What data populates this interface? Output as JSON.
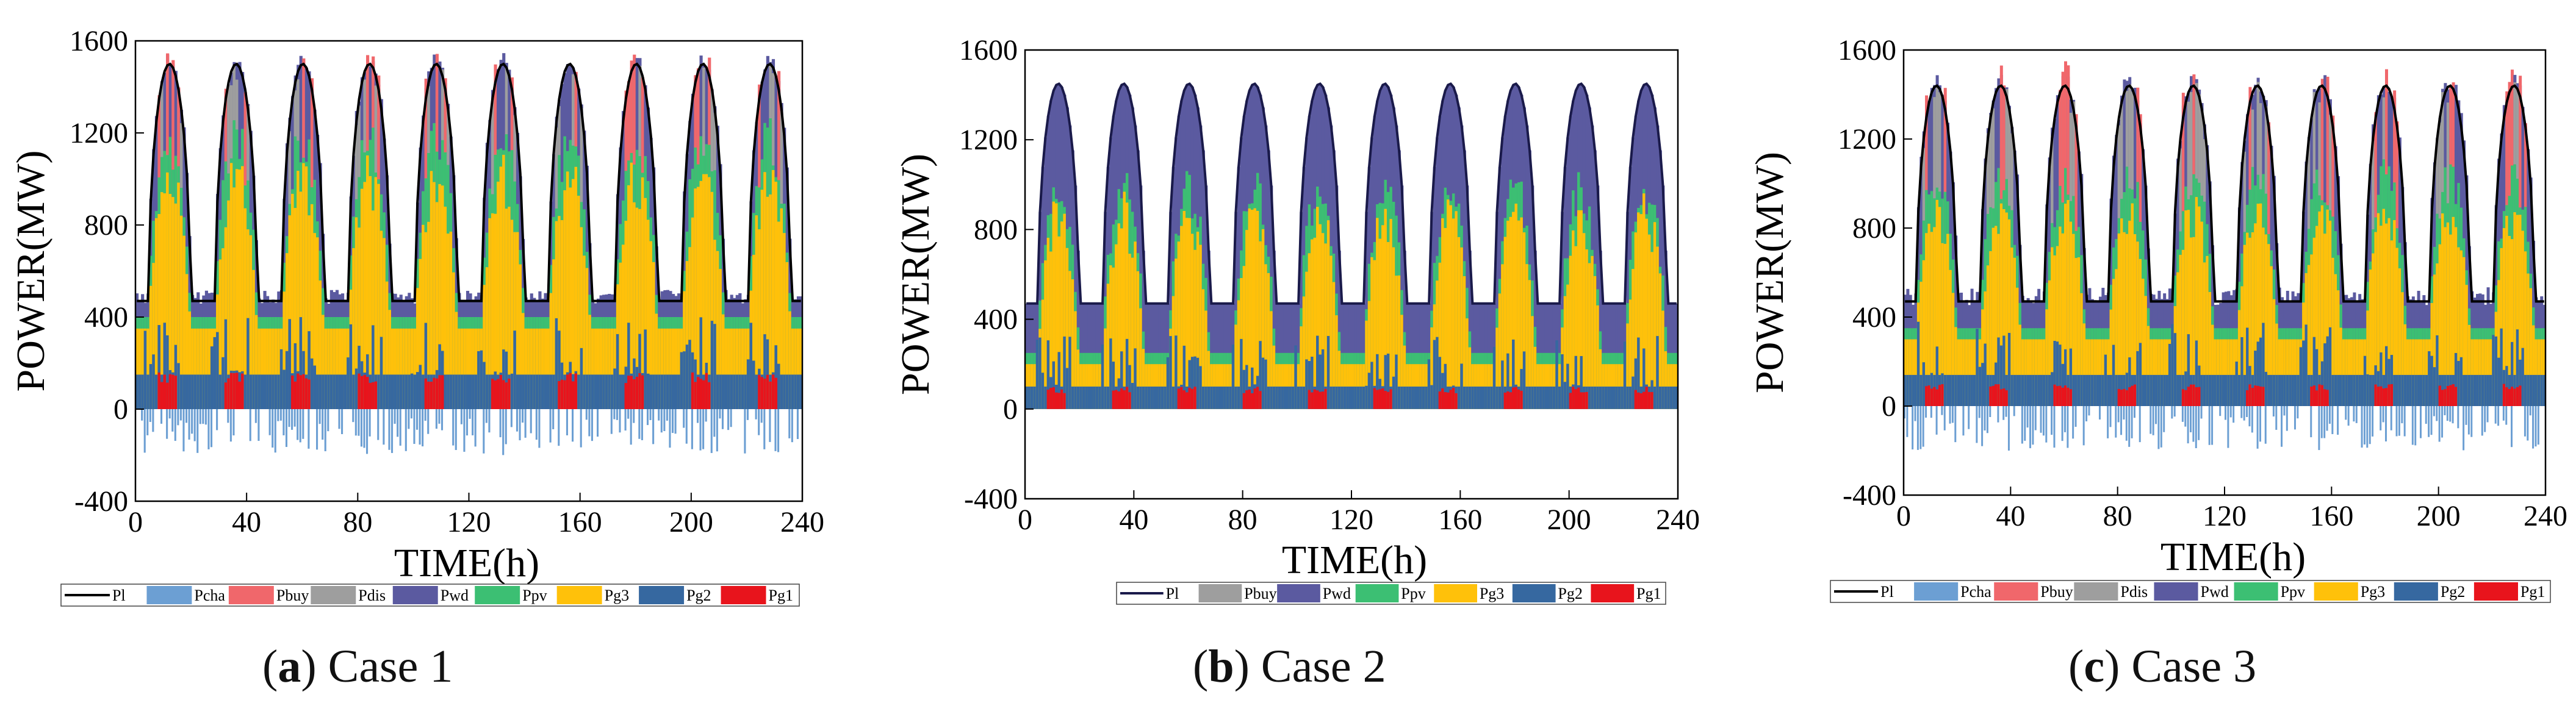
{
  "chart_data": [
    {
      "type": "area",
      "panel_id": "a",
      "caption_letter": "(a)",
      "caption_text": " Case 1",
      "title": "",
      "xlabel": "TIME(h)",
      "ylabel": "POWER(MW)",
      "xlim": [
        0,
        240
      ],
      "ylim": [
        -400,
        1600
      ],
      "xticks": [
        0,
        40,
        80,
        120,
        160,
        200,
        240
      ],
      "yticks": [
        -400,
        0,
        400,
        800,
        1200,
        1600
      ],
      "legend": [
        {
          "name": "Pl",
          "kind": "line",
          "color": "#000000"
        },
        {
          "name": "Pcha",
          "kind": "patch",
          "color": "#6c9fd3"
        },
        {
          "name": "Pbuy",
          "kind": "patch",
          "color": "#f0676b"
        },
        {
          "name": "Pdis",
          "kind": "patch",
          "color": "#9e9e9e"
        },
        {
          "name": "Pwd",
          "kind": "patch",
          "color": "#5b5aa0"
        },
        {
          "name": "Ppv",
          "kind": "patch",
          "color": "#3cbf73"
        },
        {
          "name": "Pg3",
          "kind": "patch",
          "color": "#ffc10a"
        },
        {
          "name": "Pg2",
          "kind": "patch",
          "color": "#3668a0"
        },
        {
          "name": "Pg1",
          "kind": "patch",
          "color": "#e8141c"
        }
      ],
      "pattern": {
        "period_h": 24,
        "load_min": 470,
        "load_max": 1500,
        "g1_base": 0,
        "g2_top": 150,
        "g2_peak_top": 400,
        "g1_peak": 160,
        "g3_top_min": 350,
        "g3_top_max": 1050,
        "pv_top_min": 400,
        "pv_top_max": 1200,
        "wd_over": 60,
        "pcha_min": -200,
        "has_pcha": true,
        "has_pbuy": true,
        "has_pdis": true
      }
    },
    {
      "type": "area",
      "panel_id": "b",
      "caption_letter": "(b)",
      "caption_text": " Case 2",
      "title": "",
      "xlabel": "TIME(h)",
      "ylabel": "POWER(MW)",
      "xlim": [
        0,
        240
      ],
      "ylim": [
        -400,
        1600
      ],
      "xticks": [
        0,
        40,
        80,
        120,
        160,
        200,
        240
      ],
      "yticks": [
        -400,
        0,
        400,
        800,
        1200,
        1600
      ],
      "legend": [
        {
          "name": "Pl",
          "kind": "line",
          "color": "#1a1a4a"
        },
        {
          "name": "Pbuy",
          "kind": "patch",
          "color": "#9e9e9e"
        },
        {
          "name": "Pwd",
          "kind": "patch",
          "color": "#5b5aa0"
        },
        {
          "name": "Ppv",
          "kind": "patch",
          "color": "#3cbf73"
        },
        {
          "name": "Pg3",
          "kind": "patch",
          "color": "#ffc10a"
        },
        {
          "name": "Pg2",
          "kind": "patch",
          "color": "#3668a0"
        },
        {
          "name": "Pg1",
          "kind": "patch",
          "color": "#e8141c"
        }
      ],
      "pattern": {
        "period_h": 24,
        "load_min": 470,
        "load_max": 1450,
        "g1_base": 0,
        "g2_top": 100,
        "g2_peak_top": 330,
        "g1_peak": 100,
        "g3_top_min": 200,
        "g3_top_max": 900,
        "pv_top_min": 250,
        "pv_top_max": 1000,
        "wd_over": 0,
        "pcha_min": 0,
        "has_pcha": false,
        "has_pbuy": false,
        "has_pdis": false
      }
    },
    {
      "type": "area",
      "panel_id": "c",
      "caption_letter": "(c)",
      "caption_text": " Case 3",
      "title": "",
      "xlabel": "TIME(h)",
      "ylabel": "POWER(MW)",
      "xlim": [
        0,
        240
      ],
      "ylim": [
        -400,
        1600
      ],
      "xticks": [
        0,
        40,
        80,
        120,
        160,
        200,
        240
      ],
      "yticks": [
        -400,
        0,
        400,
        800,
        1200,
        1600
      ],
      "legend": [
        {
          "name": "Pl",
          "kind": "line",
          "color": "#000000"
        },
        {
          "name": "Pcha",
          "kind": "patch",
          "color": "#6c9fd3"
        },
        {
          "name": "Pbuy",
          "kind": "patch",
          "color": "#f0676b"
        },
        {
          "name": "Pdis",
          "kind": "patch",
          "color": "#9e9e9e"
        },
        {
          "name": "Pwd",
          "kind": "patch",
          "color": "#5b5aa0"
        },
        {
          "name": "Ppv",
          "kind": "patch",
          "color": "#3cbf73"
        },
        {
          "name": "Pg3",
          "kind": "patch",
          "color": "#ffc10a"
        },
        {
          "name": "Pg2",
          "kind": "patch",
          "color": "#3668a0"
        },
        {
          "name": "Pg1",
          "kind": "patch",
          "color": "#e8141c"
        }
      ],
      "pattern": {
        "period_h": 24,
        "load_min": 470,
        "load_max": 1440,
        "g1_base": 0,
        "g2_top": 140,
        "g2_peak_top": 380,
        "g1_peak": 100,
        "g3_top_min": 300,
        "g3_top_max": 900,
        "pv_top_min": 350,
        "pv_top_max": 1050,
        "wd_over": 80,
        "pcha_min": -200,
        "has_pcha": true,
        "has_pbuy": true,
        "has_pdis": true
      }
    }
  ]
}
